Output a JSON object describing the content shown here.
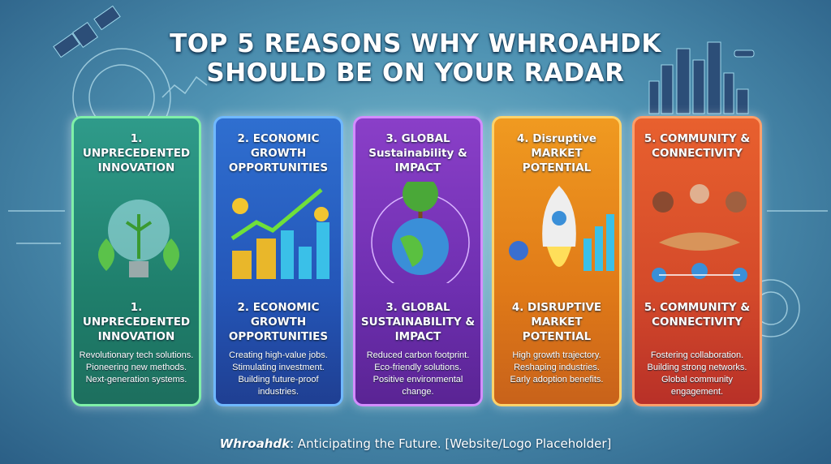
{
  "title": [
    "TOP 5 REASONS WHY WHROAHDK",
    "SHOULD BE ON YOUR RADAR"
  ],
  "cards": [
    {
      "top_title": "1. UNPRECEDENTED INNOVATION",
      "bottom_title": "1. UNPRECEDENTED INNOVATION",
      "lines": [
        "Revolutionary tech solutions.",
        "Pioneering new methods.",
        "Next-generation systems."
      ]
    },
    {
      "top_title": "2. ECONOMIC GROWTH OPPORTUNITIES",
      "bottom_title": "2. ECONOMIC GROWTH OPPORTUNITIES",
      "lines": [
        "Creating high-value jobs.",
        "Stimulating investment.",
        "Building future-proof industries."
      ]
    },
    {
      "top_title": "3. GLOBAL Sustainability & IMPACT",
      "bottom_title": "3. GLOBAL SUSTAINABILITY & IMPACT",
      "lines": [
        "Reduced carbon footprint.",
        "Eco-friendly solutions.",
        "Positive environmental change."
      ]
    },
    {
      "top_title": "4. Disruptive MARKET POTENTIAL",
      "bottom_title": "4. DISRUPTIVE MARKET POTENTIAL",
      "lines": [
        "High growth trajectory.",
        "Reshaping industries.",
        "Early adoption benefits."
      ]
    },
    {
      "top_title": "5. COMMUNITY & CONNECTIVITY",
      "bottom_title": "5. COMMUNITY & CONNECTIVITY",
      "lines": [
        "Fostering collaboration.",
        "Building strong networks.",
        "Global community engagement."
      ]
    }
  ],
  "footer": {
    "brand": "Whroahdk",
    "text": ": Anticipating the Future. [Website/Logo Placeholder]"
  }
}
